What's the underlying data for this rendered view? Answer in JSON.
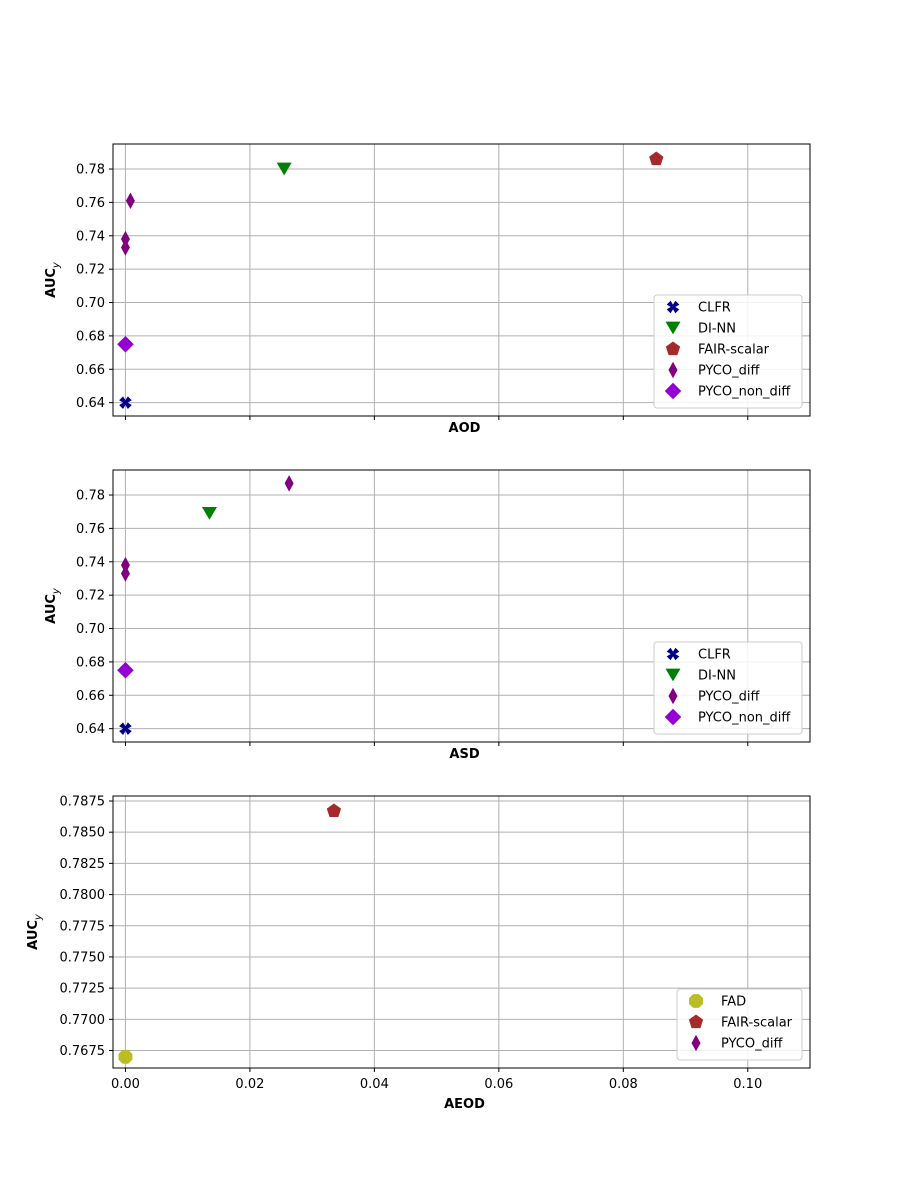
{
  "chart_data": [
    {
      "type": "scatter",
      "xlabel": "AOD",
      "ylabel": "AUC_y",
      "xlim": [
        -0.002,
        0.11
      ],
      "ylim": [
        0.632,
        0.795
      ],
      "xticks": [
        0.0,
        0.02,
        0.04,
        0.06,
        0.08,
        0.1
      ],
      "xtick_labels_visible": false,
      "yticks": [
        0.64,
        0.66,
        0.68,
        0.7,
        0.72,
        0.74,
        0.76,
        0.78
      ],
      "ytick_labels": [
        "0.64",
        "0.66",
        "0.68",
        "0.70",
        "0.72",
        "0.74",
        "0.76",
        "0.78"
      ],
      "grid": true,
      "legend_position": "lower-right",
      "series": [
        {
          "name": "CLFR",
          "marker": "X",
          "color": "#00008b",
          "points": [
            [
              0.0,
              0.64
            ]
          ]
        },
        {
          "name": "DI-NN",
          "marker": "triangle-down",
          "color": "#008000",
          "points": [
            [
              0.0255,
              0.78
            ]
          ]
        },
        {
          "name": "FAIR-scalar",
          "marker": "pentagon",
          "color": "#a52a2a",
          "points": [
            [
              0.0853,
              0.786
            ]
          ]
        },
        {
          "name": "PYCO_diff",
          "marker": "thin-diamond",
          "color": "#800080",
          "points": [
            [
              0.0008,
              0.761
            ],
            [
              0.0,
              0.738
            ],
            [
              0.0,
              0.733
            ]
          ]
        },
        {
          "name": "PYCO_non_diff",
          "marker": "diamond",
          "color": "#9400d3",
          "points": [
            [
              0.0,
              0.675
            ]
          ]
        }
      ]
    },
    {
      "type": "scatter",
      "xlabel": "ASD",
      "ylabel": "AUC_y",
      "xlim": [
        -0.002,
        0.11
      ],
      "ylim": [
        0.632,
        0.795
      ],
      "xticks": [
        0.0,
        0.02,
        0.04,
        0.06,
        0.08,
        0.1
      ],
      "xtick_labels_visible": false,
      "yticks": [
        0.64,
        0.66,
        0.68,
        0.7,
        0.72,
        0.74,
        0.76,
        0.78
      ],
      "ytick_labels": [
        "0.64",
        "0.66",
        "0.68",
        "0.70",
        "0.72",
        "0.74",
        "0.76",
        "0.78"
      ],
      "grid": true,
      "legend_position": "lower-right",
      "series": [
        {
          "name": "CLFR",
          "marker": "X",
          "color": "#00008b",
          "points": [
            [
              0.0,
              0.64
            ]
          ]
        },
        {
          "name": "DI-NN",
          "marker": "triangle-down",
          "color": "#008000",
          "points": [
            [
              0.0135,
              0.769
            ]
          ]
        },
        {
          "name": "PYCO_diff",
          "marker": "thin-diamond",
          "color": "#800080",
          "points": [
            [
              0.0263,
              0.787
            ],
            [
              0.0,
              0.738
            ],
            [
              0.0,
              0.733
            ]
          ]
        },
        {
          "name": "PYCO_non_diff",
          "marker": "diamond",
          "color": "#9400d3",
          "points": [
            [
              0.0,
              0.675
            ]
          ]
        }
      ]
    },
    {
      "type": "scatter",
      "xlabel": "AEOD",
      "ylabel": "AUC_y",
      "xlim": [
        -0.002,
        0.11
      ],
      "ylim": [
        0.7661,
        0.7879
      ],
      "xticks": [
        0.0,
        0.02,
        0.04,
        0.06,
        0.08,
        0.1
      ],
      "xtick_labels": [
        "0.00",
        "0.02",
        "0.04",
        "0.06",
        "0.08",
        "0.10"
      ],
      "xtick_labels_visible": true,
      "yticks": [
        0.7675,
        0.77,
        0.7725,
        0.775,
        0.7775,
        0.78,
        0.7825,
        0.785,
        0.7875
      ],
      "ytick_labels": [
        "0.7675",
        "0.7700",
        "0.7725",
        "0.7750",
        "0.7775",
        "0.7800",
        "0.7825",
        "0.7850",
        "0.7875"
      ],
      "grid": true,
      "legend_position": "lower-right",
      "series": [
        {
          "name": "FAD",
          "marker": "octagon",
          "color": "#bcbd22",
          "points": [
            [
              0.0,
              0.767
            ]
          ]
        },
        {
          "name": "FAIR-scalar",
          "marker": "pentagon",
          "color": "#a52a2a",
          "points": [
            [
              0.0335,
              0.7867
            ]
          ]
        },
        {
          "name": "PYCO_diff",
          "marker": "thin-diamond",
          "color": "#800080",
          "points": []
        }
      ]
    }
  ]
}
